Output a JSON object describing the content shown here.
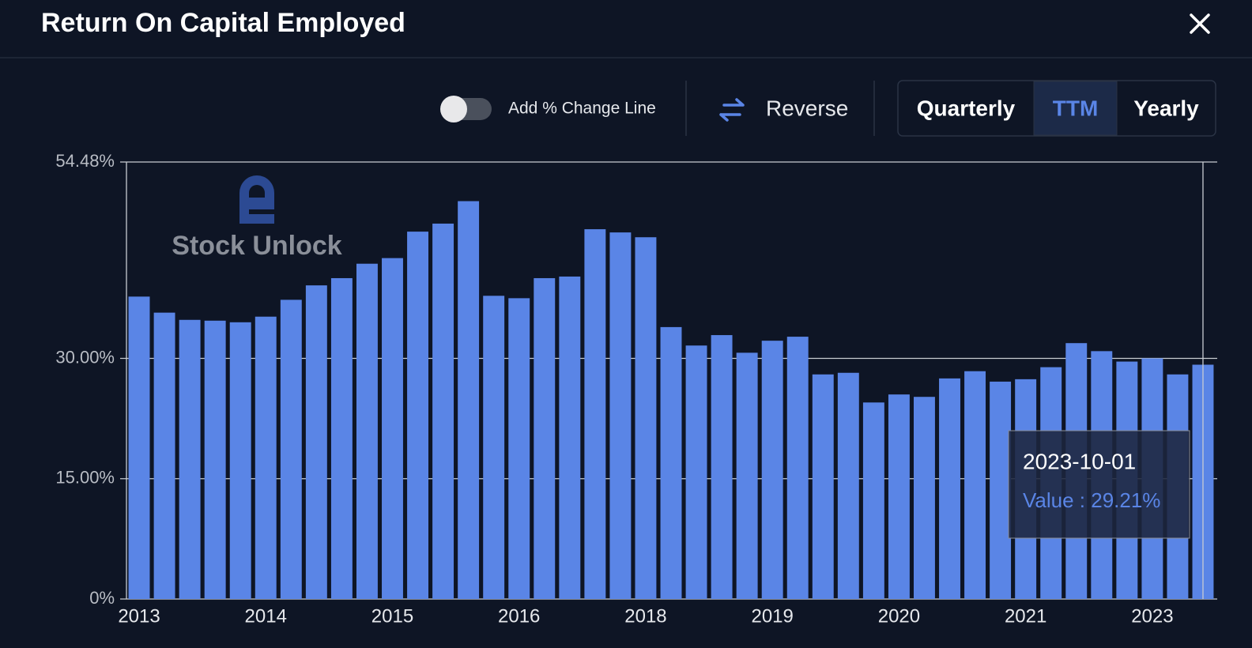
{
  "header": {
    "title": "Return On Capital Employed"
  },
  "controls": {
    "change_line": "Add % Change Line",
    "reverse": "Reverse",
    "periods": [
      "Quarterly",
      "TTM",
      "Yearly"
    ],
    "active_period": "TTM"
  },
  "watermark": "Stock Unlock",
  "chart_data": {
    "type": "bar",
    "categories": [
      "2013",
      null,
      null,
      null,
      null,
      "2014",
      null,
      null,
      null,
      null,
      "2015",
      null,
      null,
      null,
      null,
      "2016",
      null,
      null,
      null,
      null,
      "2018",
      null,
      null,
      null,
      null,
      "2019",
      null,
      null,
      null,
      null,
      "2020",
      null,
      null,
      null,
      null,
      "2021",
      null,
      null,
      null,
      null,
      "2023",
      null,
      null
    ],
    "values": [
      37.7,
      35.7,
      34.8,
      34.7,
      34.5,
      35.2,
      37.3,
      39.1,
      40.0,
      41.8,
      42.5,
      45.8,
      46.8,
      49.6,
      37.8,
      37.5,
      40.0,
      40.2,
      46.1,
      45.7,
      45.1,
      33.9,
      31.6,
      32.9,
      30.7,
      32.2,
      32.7,
      28.0,
      28.2,
      24.5,
      25.5,
      25.2,
      27.5,
      28.4,
      27.1,
      27.4,
      28.9,
      31.9,
      30.9,
      29.6,
      30.0,
      28.0,
      29.21
    ],
    "color": "#5a85e6",
    "ylim": [
      0,
      54.48
    ],
    "yticks": [
      {
        "value": 0,
        "label": "0%"
      },
      {
        "value": 15,
        "label": "15.00%"
      },
      {
        "value": 30,
        "label": "30.00%"
      },
      {
        "value": 54.48,
        "label": "54.48%"
      }
    ],
    "grid": true,
    "tooltip": {
      "date": "2023-10-01",
      "text": "Value : 29.21%"
    }
  }
}
